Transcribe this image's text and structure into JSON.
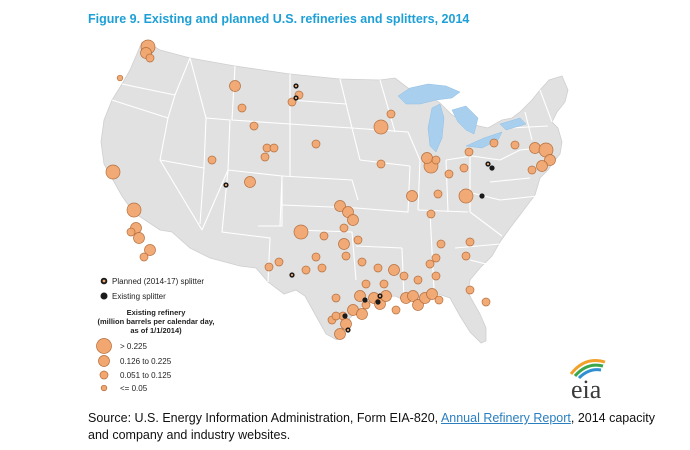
{
  "figure": {
    "title": "Figure 9. Existing and planned U.S. refineries and splitters, 2014"
  },
  "legend": {
    "planned_splitter": "Planned (2014-17) splitter",
    "existing_splitter": "Existing splitter",
    "refinery_title_1": "Existing refinery",
    "refinery_title_2": "(million barrels per calendar day,",
    "refinery_title_3": "as of 1/1/2014)",
    "sizes": [
      "> 0.225",
      "0.126 to 0.225",
      "0.051 to 0.125",
      "<= 0.05"
    ]
  },
  "logo": {
    "text": "eia"
  },
  "source": {
    "prefix": "Source: U.S. Energy Information Administration, Form EIA-820, ",
    "link_text": "Annual Refinery Report",
    "suffix": ", 2014 capacity and company and industry websites."
  },
  "colors": {
    "refinery_fill": "#f2a770",
    "refinery_stroke": "#b36a36",
    "land": "#e1e1e1",
    "state_border": "#ffffff",
    "lakes": "#a8cfee",
    "splitter": "#1a1a1a",
    "title": "#1ea0d6"
  }
}
